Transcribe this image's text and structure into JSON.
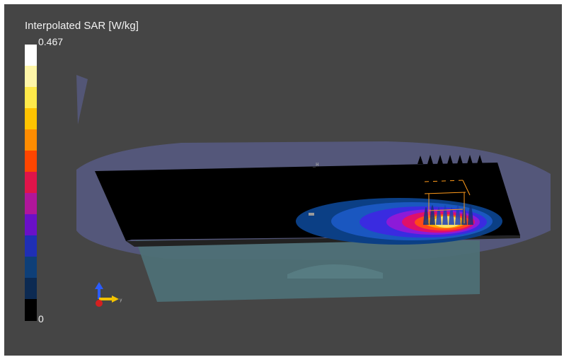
{
  "colorbar": {
    "title": "Interpolated SAR [W/kg]",
    "max_label": "0.467",
    "min_label": "0",
    "colors_top_to_bottom": [
      "#ffffff",
      "#fff6a8",
      "#ffe94a",
      "#ffc300",
      "#ff8c00",
      "#ff4500",
      "#e0144a",
      "#b0169a",
      "#6a10c8",
      "#1f2fb5",
      "#0e3f78",
      "#0c2a52",
      "#000000"
    ]
  },
  "scene": {
    "heatmap_colors": [
      "#0b3f85",
      "#1a57c0",
      "#3a2be0",
      "#8c1ad8",
      "#e0106a",
      "#ff4a1a",
      "#ffa500",
      "#ffe066"
    ],
    "phantom_color": "#5a5e8c",
    "board_color": "#000000",
    "tissue_color": "#4d6e73"
  },
  "axes_triad": {
    "x_icon": "x-axis-arrow-icon",
    "y_icon": "y-axis-arrow-icon",
    "z_icon": "z-axis-arrow-icon"
  }
}
